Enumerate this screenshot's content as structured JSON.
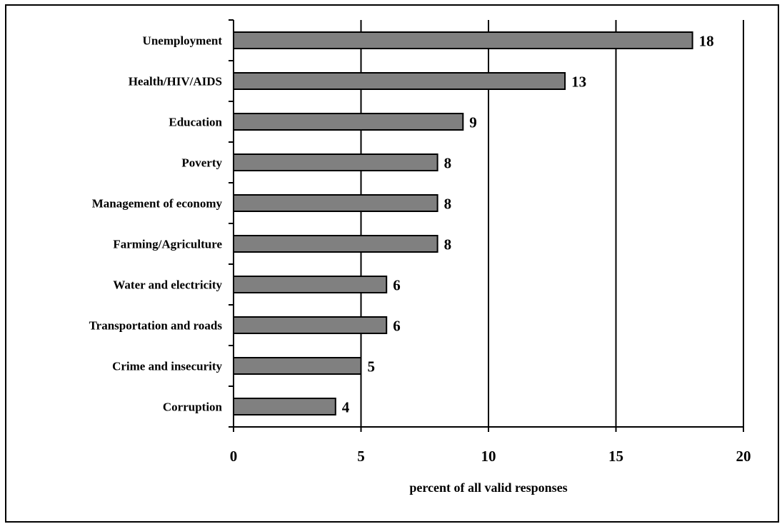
{
  "chart_data": {
    "type": "bar",
    "orientation": "horizontal",
    "categories": [
      "Unemployment",
      "Health/HIV/AIDS",
      "Education",
      "Poverty",
      "Management of economy",
      "Farming/Agriculture",
      "Water and electricity",
      "Transportation and roads",
      "Crime and insecurity",
      "Corruption"
    ],
    "values": [
      18,
      13,
      9,
      8,
      8,
      8,
      6,
      6,
      5,
      4
    ],
    "data_labels": [
      "18",
      "13",
      "9",
      "8",
      "8",
      "8",
      "6",
      "6",
      "5",
      "4"
    ],
    "title": "",
    "xlabel": "percent of all valid responses",
    "ylabel": "",
    "xlim": [
      0,
      20
    ],
    "xticks": [
      "0",
      "5",
      "10",
      "15",
      "20"
    ],
    "grid": "vertical",
    "bar_color": "#808080",
    "edge_color": "#000000"
  }
}
